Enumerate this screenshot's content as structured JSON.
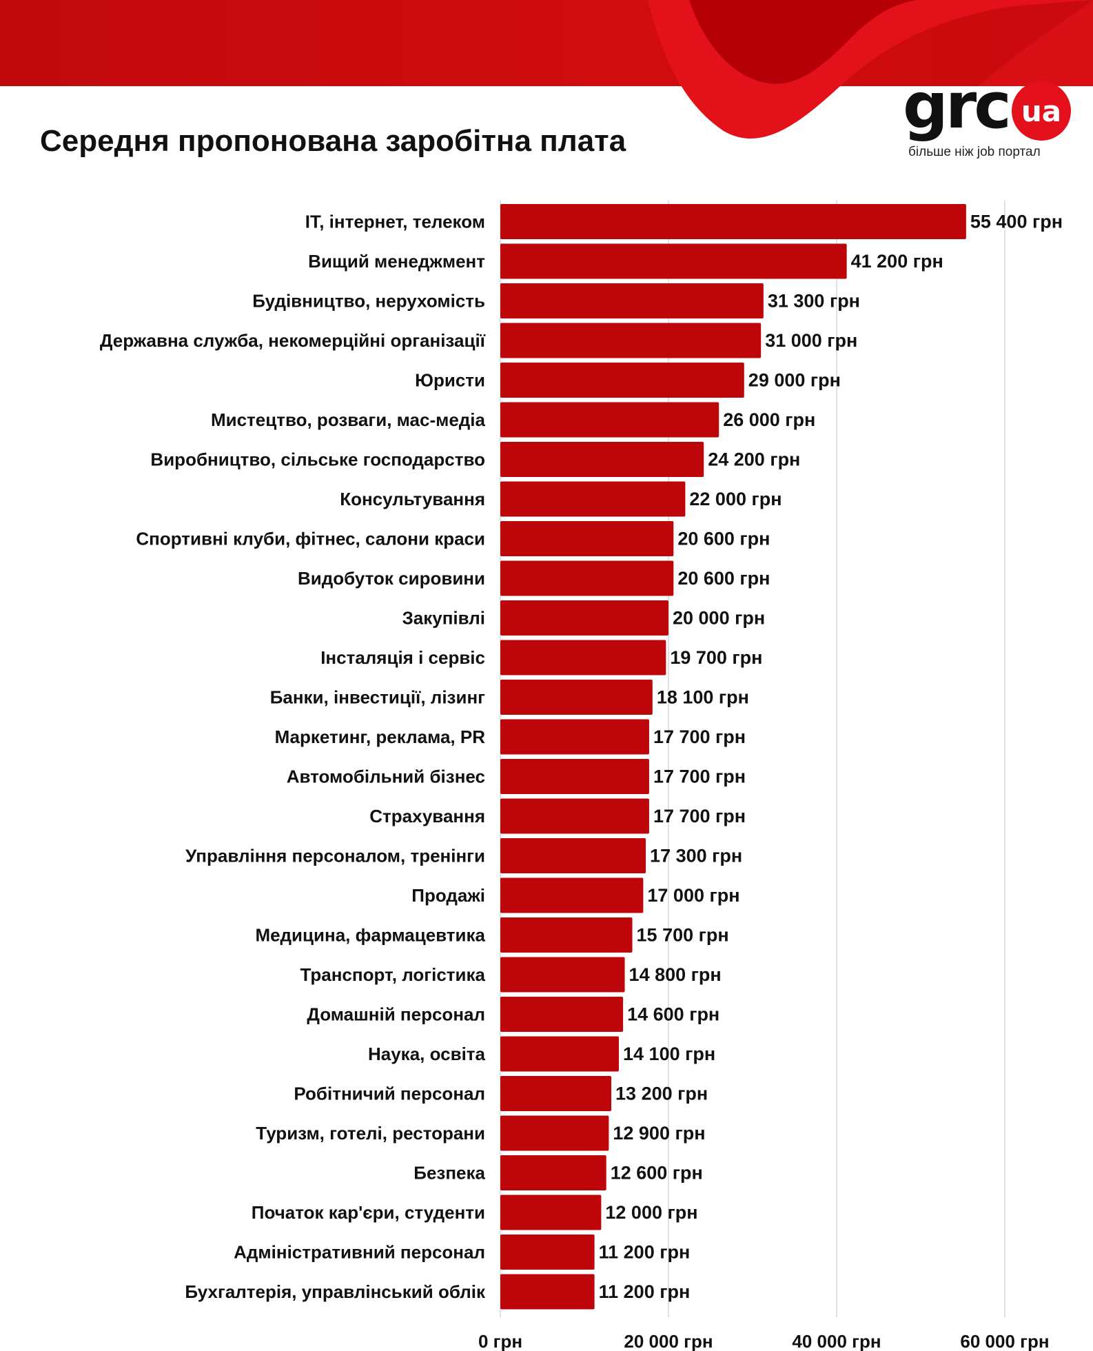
{
  "title": "Середня пропонована заробітна плата",
  "logo": {
    "word": "grc",
    "badge": "ua",
    "tagline": "більше ніж job портал"
  },
  "colors": {
    "bar": "#bd0609",
    "brand": "#d10c10",
    "grid": "#d9d9d9",
    "text": "#111111"
  },
  "chart_data": {
    "type": "bar",
    "orientation": "horizontal",
    "title": "Середня пропонована заробітна плата",
    "xlabel": "",
    "ylabel": "",
    "xlim": [
      0,
      60000
    ],
    "ticks": [
      {
        "value": 0,
        "label": "0 грн"
      },
      {
        "value": 20000,
        "label": "20 000 грн"
      },
      {
        "value": 40000,
        "label": "40 000 грн"
      },
      {
        "value": 60000,
        "label": "60 000 грн"
      }
    ],
    "categories": [
      "ІТ, інтернет, телеком",
      "Вищий менеджмент",
      "Будівництво, нерухомість",
      "Державна служба, некомерційні організації",
      "Юристи",
      "Мистецтво, розваги, мас-медіа",
      "Виробництво, сільське господарство",
      "Консультування",
      "Спортивні клуби, фітнес, салони краси",
      "Видобуток сировини",
      "Закупівлі",
      "Інсталяція і сервіс",
      "Банки, інвестиції, лізинг",
      "Маркетинг, реклама, PR",
      "Автомобільний бізнес",
      "Страхування",
      "Управління персоналом, тренінги",
      "Продажі",
      "Медицина, фармацевтика",
      "Транспорт, логістика",
      "Домашній персонал",
      "Наука, освіта",
      "Робітничий персонал",
      "Туризм, готелі, ресторани",
      "Безпека",
      "Початок кар'єри, студенти",
      "Адміністративний персонал",
      "Бухгалтерія, управлінський облік"
    ],
    "values": [
      55400,
      41200,
      31300,
      31000,
      29000,
      26000,
      24200,
      22000,
      20600,
      20600,
      20000,
      19700,
      18100,
      17700,
      17700,
      17700,
      17300,
      17000,
      15700,
      14800,
      14600,
      14100,
      13200,
      12900,
      12600,
      12000,
      11200,
      11200
    ],
    "value_labels": [
      "55 400 грн",
      "41 200 грн",
      "31 300 грн",
      "31 000 грн",
      "29 000 грн",
      "26 000 грн",
      "24 200 грн",
      "22 000 грн",
      "20 600 грн",
      "20 600 грн",
      "20 000 грн",
      "19 700 грн",
      "18 100 грн",
      "17 700 грн",
      "17 700 грн",
      "17 700 грн",
      "17 300 грн",
      "17 000 грн",
      "15 700 грн",
      "14 800 грн",
      "14 600 грн",
      "14 100 грн",
      "13 200 грн",
      "12 900 грн",
      "12 600 грн",
      "12 000 грн",
      "11 200  грн",
      "11 200 грн"
    ]
  }
}
